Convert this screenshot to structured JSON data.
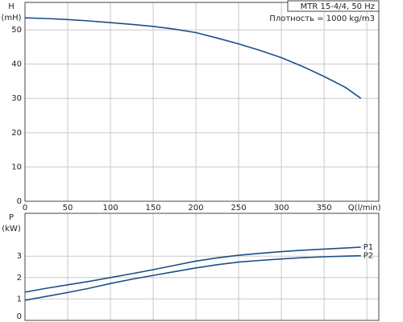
{
  "chart_data": [
    {
      "type": "line",
      "ylabel": [
        "H",
        "(mH)"
      ],
      "annotations": [
        "MTR 15-4/4, 50 Hz",
        "Плотность = 1000 kg/m3"
      ],
      "x": [
        0,
        25,
        50,
        75,
        100,
        125,
        150,
        175,
        200,
        225,
        250,
        275,
        300,
        325,
        350,
        375,
        393
      ],
      "series": [
        {
          "color": "#1a4f86",
          "values": [
            53.5,
            53.3,
            53,
            52.6,
            52.1,
            51.6,
            51,
            50.2,
            49.2,
            47.6,
            45.9,
            44,
            41.9,
            39.3,
            36.4,
            33.2,
            30
          ]
        }
      ],
      "xlim": [
        0,
        414
      ],
      "ylim": [
        0,
        58
      ],
      "xticks": [
        0,
        50,
        100,
        150,
        200,
        250,
        300,
        350,
        {
          "value": 400,
          "label": "Q(l/min)"
        }
      ],
      "yticks": [
        0,
        10,
        20,
        30,
        40,
        50
      ],
      "grid": true,
      "xtick_labels": true
    },
    {
      "type": "line",
      "ylabel": [
        "P",
        "(kW)"
      ],
      "x": [
        0,
        25,
        50,
        75,
        100,
        125,
        150,
        175,
        200,
        225,
        250,
        275,
        300,
        325,
        350,
        375,
        393
      ],
      "series": [
        {
          "name": "P1",
          "color": "#1a4f86",
          "values": [
            1.32,
            1.5,
            1.66,
            1.82,
            2.0,
            2.18,
            2.37,
            2.57,
            2.77,
            2.92,
            3.04,
            3.13,
            3.21,
            3.28,
            3.33,
            3.38,
            3.42
          ]
        },
        {
          "name": "P2",
          "color": "#1a4f86",
          "values": [
            0.94,
            1.12,
            1.3,
            1.5,
            1.72,
            1.92,
            2.1,
            2.28,
            2.45,
            2.6,
            2.72,
            2.8,
            2.87,
            2.93,
            2.97,
            3.0,
            3.02
          ]
        }
      ],
      "xlim": [
        0,
        414
      ],
      "ylim": [
        0,
        5
      ],
      "xticks": [
        0,
        50,
        100,
        150,
        200,
        250,
        300,
        350,
        400
      ],
      "yticks": [
        0,
        1,
        2,
        3
      ],
      "grid": true,
      "xtick_labels": false
    }
  ]
}
